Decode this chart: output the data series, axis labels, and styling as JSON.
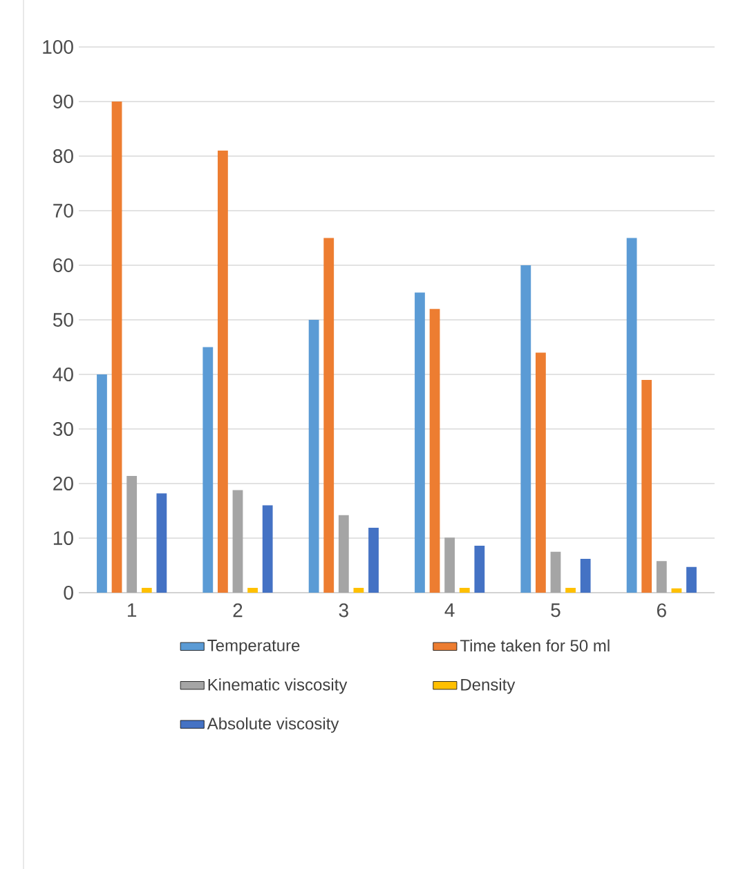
{
  "chart_data": {
    "type": "bar",
    "categories": [
      "1",
      "2",
      "3",
      "4",
      "5",
      "6"
    ],
    "series": [
      {
        "name": "Temperature",
        "color": "#5b9bd5",
        "values": [
          40,
          45,
          50,
          55,
          60,
          65
        ]
      },
      {
        "name": "Time taken for 50 ml",
        "color": "#ed7d31",
        "values": [
          90,
          81,
          65,
          52,
          44,
          39
        ]
      },
      {
        "name": "Kinematic viscosity",
        "color": "#a5a5a5",
        "values": [
          21.4,
          18.8,
          14.2,
          10.1,
          7.5,
          5.8
        ]
      },
      {
        "name": "Density",
        "color": "#ffc000",
        "values": [
          0.9,
          0.9,
          0.9,
          0.9,
          0.9,
          0.8
        ]
      },
      {
        "name": "Absolute viscosity",
        "color": "#4472c4",
        "values": [
          18.2,
          16.0,
          11.9,
          8.6,
          6.2,
          4.7
        ]
      }
    ],
    "ylim": [
      0,
      100
    ],
    "yticks": [
      0,
      10,
      20,
      30,
      40,
      50,
      60,
      70,
      80,
      90,
      100
    ],
    "grid": "y",
    "legend": "bottom"
  }
}
